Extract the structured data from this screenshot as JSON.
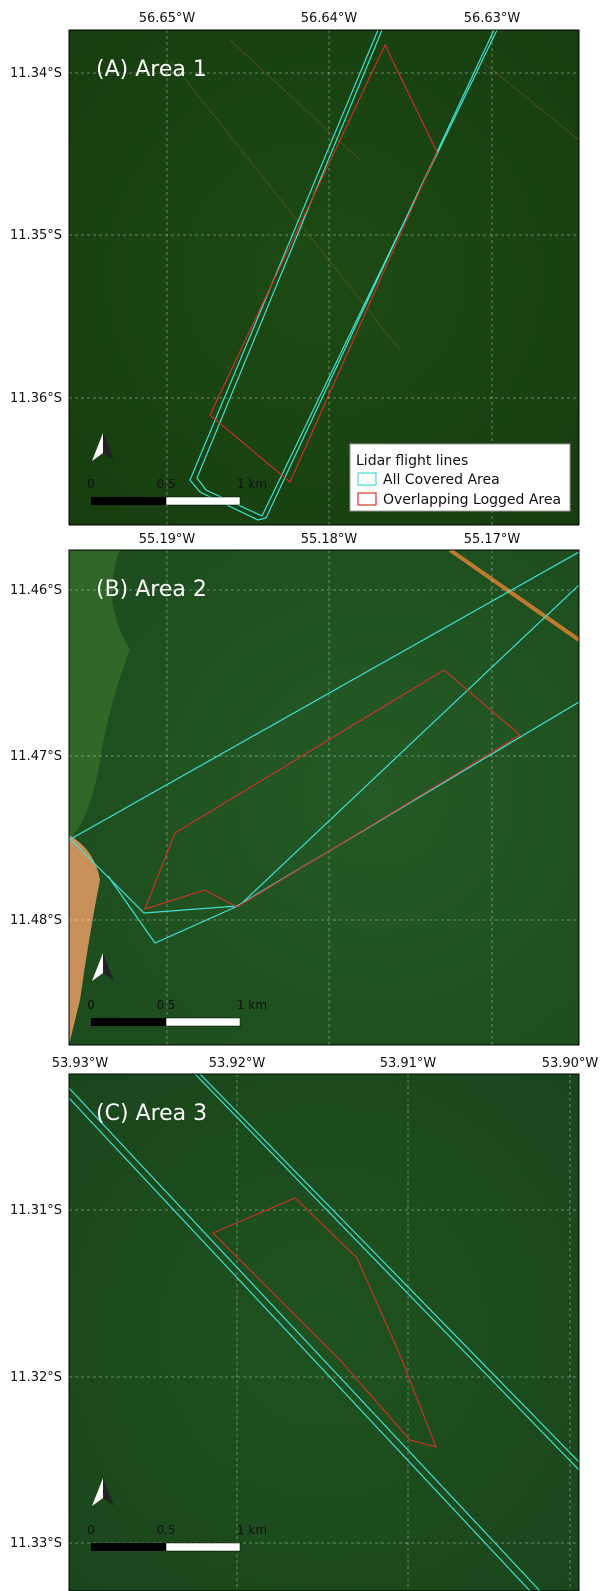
{
  "panels": [
    {
      "title": "(A) Area 1",
      "x_ticks": [
        "56.65°W",
        "56.64°W",
        "56.63°W"
      ],
      "y_ticks": [
        "11.34°S",
        "11.35°S",
        "11.36°S"
      ],
      "scale_bar": [
        "0",
        "0.5",
        "1 km"
      ]
    },
    {
      "title": "(B) Area 2",
      "x_ticks": [
        "55.19°W",
        "55.18°W",
        "55.17°W"
      ],
      "y_ticks": [
        "11.46°S",
        "11.47°S",
        "11.48°S"
      ],
      "scale_bar": [
        "0",
        "0.5",
        "1 km"
      ]
    },
    {
      "title": "(C) Area 3",
      "x_ticks": [
        "53.93°W",
        "53.92°W",
        "53.91°W",
        "53.90°W"
      ],
      "y_ticks": [
        "11.31°S",
        "11.32°S",
        "11.33°S"
      ],
      "scale_bar": [
        "0",
        "0.5",
        "1 km"
      ]
    }
  ],
  "legend": {
    "title": "Lidar flight lines",
    "items": [
      "All Covered Area",
      "Overlapping Logged Area"
    ]
  }
}
